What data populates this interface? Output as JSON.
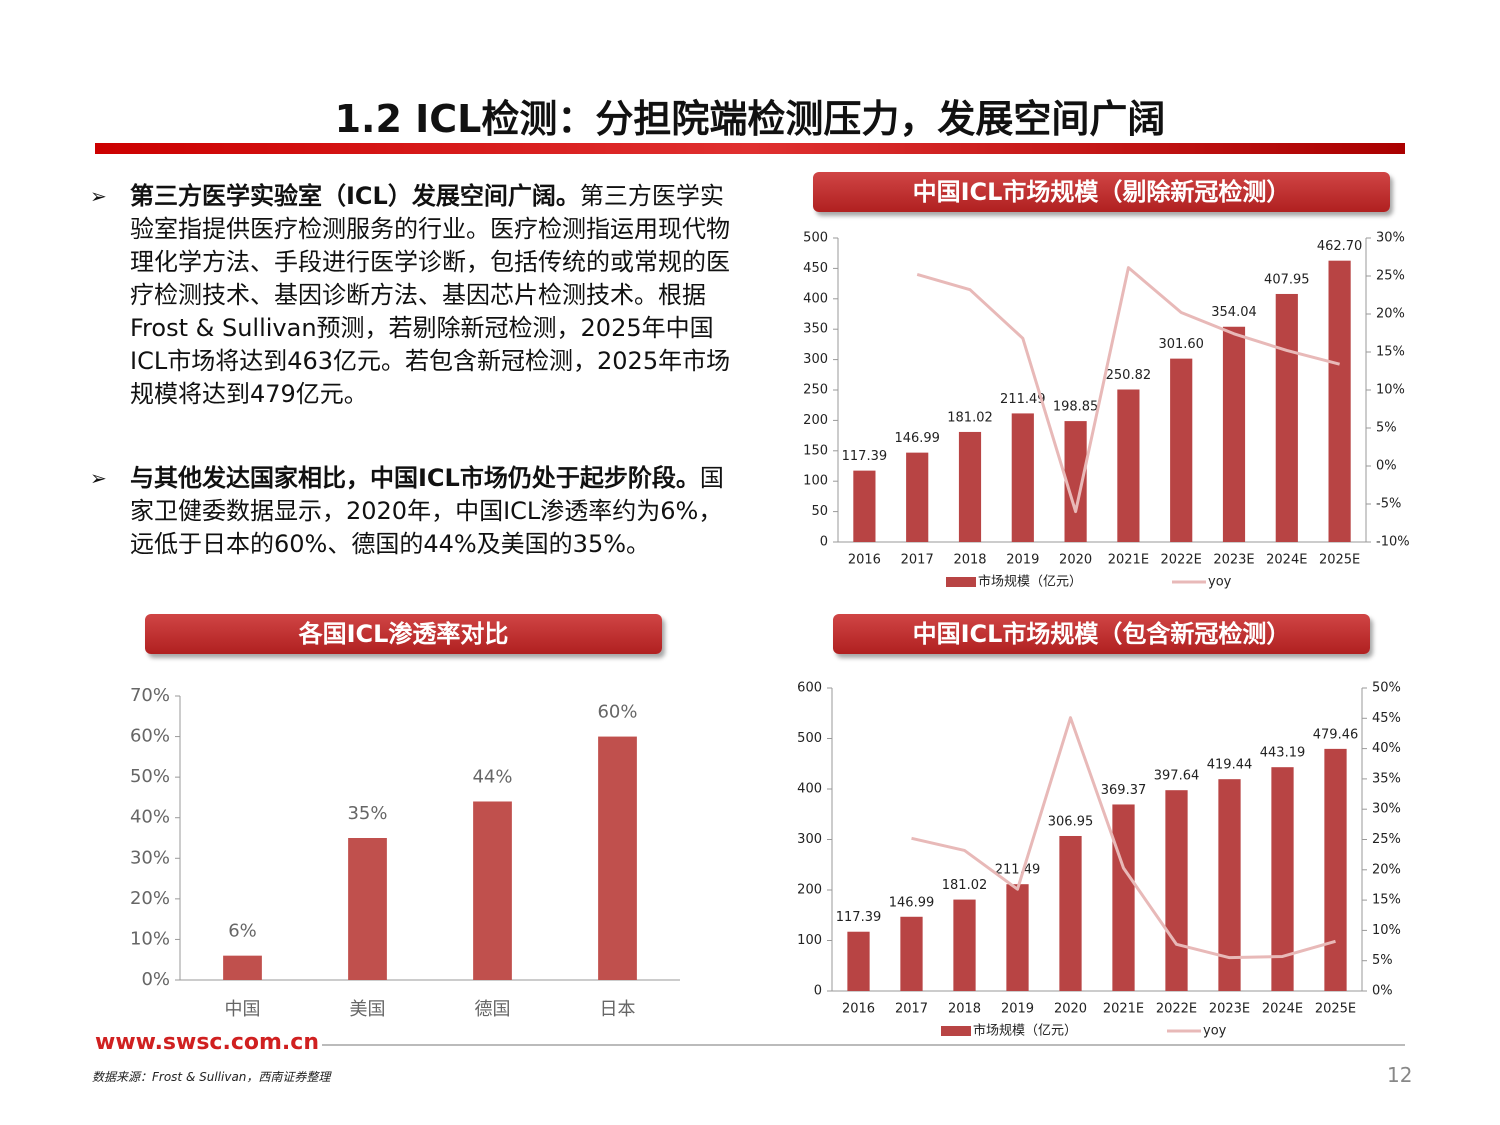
{
  "header": {
    "title": "1.2 ICL检测：分担院端检测压力，发展空间广阔"
  },
  "bullets": [
    {
      "bold": "第三方医学实验室（ICL）发展空间广阔。",
      "text": "第三方医学实验室指提供医疗检测服务的行业。医疗检测指运用现代物理化学方法、手段进行医学诊断，包括传统的或常规的医疗检测技术、基因诊断方法、基因芯片检测技术。根据Frost & Sullivan预测，若剔除新冠检测，2025年中国ICL市场将达到463亿元。若包含新冠检测，2025年市场规模将达到479亿元。"
    },
    {
      "bold": "与其他发达国家相比，中国ICL市场仍处于起步阶段。",
      "text": "国家卫健委数据显示，2020年，中国ICL渗透率约为6%，远低于日本的60%、德国的44%及美国的35%。"
    }
  ],
  "chart_data": [
    {
      "type": "bar",
      "title": "中国ICL市场规模（剔除新冠检测）",
      "categories": [
        "2016",
        "2017",
        "2018",
        "2019",
        "2020",
        "2021E",
        "2022E",
        "2023E",
        "2024E",
        "2025E"
      ],
      "series": [
        {
          "name": "市场规模（亿元）",
          "type": "bar",
          "color": "#b84444",
          "values": [
            117.39,
            146.99,
            181.02,
            211.49,
            198.85,
            250.82,
            301.6,
            354.04,
            407.95,
            462.7
          ],
          "value_labels": [
            "117.39",
            "146.99",
            "181.02",
            "211.49",
            "198.85",
            "250.82",
            "301.60",
            "354.04",
            "407.95",
            "462.70"
          ]
        },
        {
          "name": "yoy",
          "type": "line",
          "axis": "y2",
          "color": "#e8b9b8",
          "values": [
            null,
            25.2,
            23.2,
            16.8,
            -6.0,
            26.1,
            20.2,
            17.4,
            15.2,
            13.4
          ]
        }
      ],
      "ylim": [
        0,
        500
      ],
      "yticks": [
        0,
        50,
        100,
        150,
        200,
        250,
        300,
        350,
        400,
        450,
        500
      ],
      "y2lim": [
        -10,
        30
      ],
      "y2ticks": [
        {
          "value": -10,
          "label": "-10%"
        },
        {
          "value": -5,
          "label": "-5%"
        },
        {
          "value": 0,
          "label": "0%"
        },
        {
          "value": 5,
          "label": "5%"
        },
        {
          "value": 10,
          "label": "10%"
        },
        {
          "value": 15,
          "label": "15%"
        },
        {
          "value": 20,
          "label": "20%"
        },
        {
          "value": 25,
          "label": "25%"
        },
        {
          "value": 30,
          "label": "30%"
        }
      ],
      "grid": false,
      "legend": "bottom"
    },
    {
      "type": "bar",
      "title": "各国ICL渗透率对比",
      "categories": [
        "中国",
        "美国",
        "德国",
        "日本"
      ],
      "values": [
        6,
        35,
        44,
        60
      ],
      "value_labels": [
        "6%",
        "35%",
        "44%",
        "60%"
      ],
      "color": "#c0504d",
      "ylim": [
        0,
        70
      ],
      "yticks": [
        {
          "value": 0,
          "label": "0%"
        },
        {
          "value": 10,
          "label": "10%"
        },
        {
          "value": 20,
          "label": "20%"
        },
        {
          "value": 30,
          "label": "30%"
        },
        {
          "value": 40,
          "label": "40%"
        },
        {
          "value": 50,
          "label": "50%"
        },
        {
          "value": 60,
          "label": "60%"
        },
        {
          "value": 70,
          "label": "70%"
        }
      ],
      "grid": false
    },
    {
      "type": "bar",
      "title": "中国ICL市场规模（包含新冠检测）",
      "categories": [
        "2016",
        "2017",
        "2018",
        "2019",
        "2020",
        "2021E",
        "2022E",
        "2023E",
        "2024E",
        "2025E"
      ],
      "series": [
        {
          "name": "市场规模（亿元）",
          "type": "bar",
          "color": "#b84444",
          "values": [
            117.39,
            146.99,
            181.02,
            211.49,
            306.95,
            369.37,
            397.64,
            419.44,
            443.19,
            479.46
          ],
          "value_labels": [
            "117.39",
            "146.99",
            "181.02",
            "211.49",
            "306.95",
            "369.37",
            "397.64",
            "419.44",
            "443.19",
            "479.46"
          ]
        },
        {
          "name": "yoy",
          "type": "line",
          "axis": "y2",
          "color": "#e8b9b8",
          "values": [
            null,
            25.2,
            23.2,
            16.8,
            45.1,
            20.3,
            7.7,
            5.5,
            5.7,
            8.2
          ]
        }
      ],
      "ylim": [
        0,
        600
      ],
      "yticks": [
        0,
        100,
        200,
        300,
        400,
        500,
        600
      ],
      "y2lim": [
        0,
        50
      ],
      "y2ticks": [
        {
          "value": 0,
          "label": "0%"
        },
        {
          "value": 5,
          "label": "5%"
        },
        {
          "value": 10,
          "label": "10%"
        },
        {
          "value": 15,
          "label": "15%"
        },
        {
          "value": 20,
          "label": "20%"
        },
        {
          "value": 25,
          "label": "25%"
        },
        {
          "value": 30,
          "label": "30%"
        },
        {
          "value": 35,
          "label": "35%"
        },
        {
          "value": 40,
          "label": "40%"
        },
        {
          "value": 45,
          "label": "45%"
        },
        {
          "value": 50,
          "label": "50%"
        }
      ],
      "grid": false,
      "legend": "bottom"
    }
  ],
  "footer": {
    "site": "www.swsc.com.cn",
    "source": "数据来源：Frost & Sullivan，西南证券整理",
    "page": "12"
  }
}
